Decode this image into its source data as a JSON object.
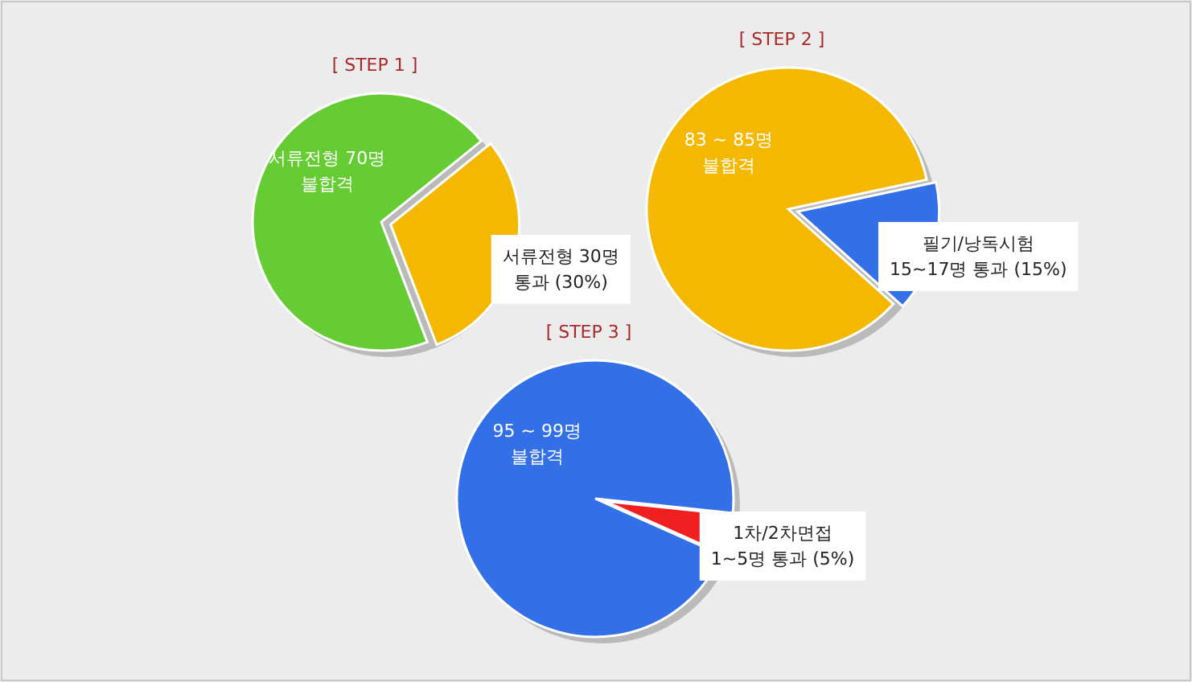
{
  "chart_data": [
    {
      "type": "pie",
      "title": "[ STEP 1 ]",
      "categories": [
        "서류전형 70명\n불합격",
        "서류전형 30명\n통과 (30%)"
      ],
      "values": [
        70,
        30
      ],
      "colors": [
        "#66cc33",
        "#f5b800"
      ]
    },
    {
      "type": "pie",
      "title": "[ STEP 2 ]",
      "categories": [
        "83 ~ 85명\n불합격",
        "필기/낭독시험\n15~17명 통과 (15%)"
      ],
      "values": [
        85,
        15
      ],
      "colors": [
        "#f5b800",
        "#3370e8"
      ]
    },
    {
      "type": "pie",
      "title": "[ STEP 3 ]",
      "categories": [
        "95 ~ 99명\n불합격",
        "1차/2차면접\n1~5명 통과 (5%)"
      ],
      "values": [
        95,
        5
      ],
      "colors": [
        "#3370e8",
        "#f02020"
      ]
    }
  ]
}
